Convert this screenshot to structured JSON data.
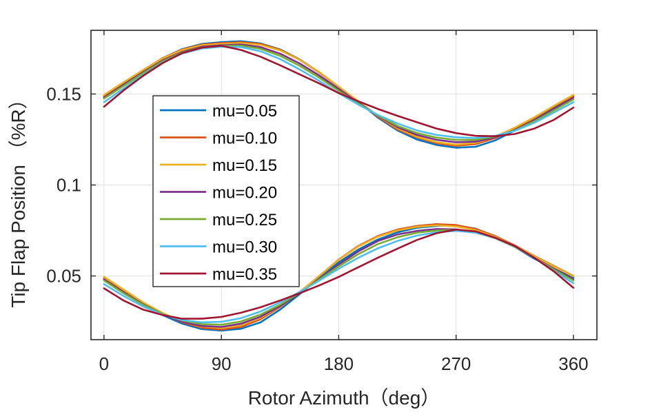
{
  "chart_data": {
    "type": "line",
    "title": "",
    "xlabel": "Rotor Azimuth（deg）",
    "ylabel": "Tip Flap Position （%R）",
    "xlim": [
      -10,
      378
    ],
    "ylim": [
      0.015,
      0.185
    ],
    "xticks": [
      0,
      90,
      180,
      270,
      360
    ],
    "xtick_labels": [
      "0",
      "90",
      "180",
      "270",
      "360"
    ],
    "yticks": [
      0.05,
      0.1,
      0.15
    ],
    "ytick_labels": [
      "0.05",
      "0.1",
      "0.15"
    ],
    "grid": true,
    "legend_position": "center-left",
    "x": [
      0,
      15,
      30,
      45,
      60,
      75,
      90,
      105,
      120,
      135,
      150,
      165,
      180,
      195,
      210,
      225,
      240,
      255,
      270,
      285,
      300,
      315,
      330,
      345,
      360
    ],
    "series": [
      {
        "name": "mu=0.05",
        "color": "#0072BD",
        "group": "upper",
        "values": [
          0.1485,
          0.1558,
          0.163,
          0.1697,
          0.1747,
          0.1775,
          0.1785,
          0.179,
          0.1778,
          0.1745,
          0.169,
          0.162,
          0.154,
          0.1458,
          0.137,
          0.13,
          0.125,
          0.122,
          0.1205,
          0.121,
          0.1245,
          0.13,
          0.136,
          0.1425,
          0.1485
        ]
      },
      {
        "name": "mu=0.10",
        "color": "#D95319",
        "group": "upper",
        "values": [
          0.149,
          0.1563,
          0.1632,
          0.1697,
          0.1745,
          0.1772,
          0.178,
          0.1785,
          0.1775,
          0.1743,
          0.1688,
          0.1618,
          0.154,
          0.1458,
          0.1375,
          0.1305,
          0.126,
          0.123,
          0.1215,
          0.1225,
          0.1258,
          0.131,
          0.1368,
          0.1432,
          0.149
        ]
      },
      {
        "name": "mu=0.15",
        "color": "#EDB120",
        "group": "upper",
        "values": [
          0.1495,
          0.1565,
          0.1632,
          0.1695,
          0.1742,
          0.1768,
          0.1775,
          0.178,
          0.177,
          0.174,
          0.1688,
          0.162,
          0.154,
          0.146,
          0.138,
          0.1312,
          0.1265,
          0.1235,
          0.1222,
          0.1232,
          0.1265,
          0.1315,
          0.1372,
          0.1435,
          0.1495
        ]
      },
      {
        "name": "mu=0.20",
        "color": "#7E2F8E",
        "group": "upper",
        "values": [
          0.148,
          0.155,
          0.162,
          0.1685,
          0.1732,
          0.176,
          0.1768,
          0.1772,
          0.1758,
          0.1722,
          0.1668,
          0.1602,
          0.1528,
          0.1452,
          0.138,
          0.1318,
          0.1275,
          0.1248,
          0.1235,
          0.1238,
          0.1262,
          0.1302,
          0.1355,
          0.1418,
          0.148
        ]
      },
      {
        "name": "mu=0.25",
        "color": "#77AC30",
        "group": "upper",
        "values": [
          0.1475,
          0.1545,
          0.1615,
          0.168,
          0.1728,
          0.1756,
          0.1764,
          0.1766,
          0.1748,
          0.171,
          0.1655,
          0.159,
          0.1518,
          0.1448,
          0.1382,
          0.1325,
          0.1285,
          0.126,
          0.1248,
          0.1248,
          0.1266,
          0.13,
          0.135,
          0.141,
          0.147
        ]
      },
      {
        "name": "mu=0.30",
        "color": "#4DBEEE",
        "group": "upper",
        "values": [
          0.1455,
          0.153,
          0.1605,
          0.1673,
          0.1722,
          0.175,
          0.176,
          0.1758,
          0.1735,
          0.1692,
          0.1635,
          0.1572,
          0.1505,
          0.1442,
          0.1385,
          0.1338,
          0.13,
          0.1275,
          0.1262,
          0.1258,
          0.127,
          0.1298,
          0.1342,
          0.1398,
          0.1455
        ]
      },
      {
        "name": "mu=0.35",
        "color": "#A2142F",
        "group": "upper",
        "values": [
          0.143,
          0.152,
          0.16,
          0.167,
          0.1725,
          0.1755,
          0.1765,
          0.1742,
          0.1705,
          0.1658,
          0.1608,
          0.1558,
          0.1505,
          0.146,
          0.1418,
          0.138,
          0.1345,
          0.131,
          0.1285,
          0.127,
          0.1268,
          0.128,
          0.131,
          0.1358,
          0.1425
        ]
      },
      {
        "name": "mu=0.05",
        "color": "#0072BD",
        "group": "lower",
        "values": [
          0.0485,
          0.0415,
          0.0345,
          0.0285,
          0.0238,
          0.0208,
          0.02,
          0.021,
          0.0245,
          0.0315,
          0.04,
          0.049,
          0.0575,
          0.0645,
          0.07,
          0.074,
          0.0765,
          0.0775,
          0.0778,
          0.076,
          0.0718,
          0.066,
          0.0595,
          0.054,
          0.049
        ]
      },
      {
        "name": "mu=0.10",
        "color": "#D95319",
        "group": "lower",
        "values": [
          0.049,
          0.042,
          0.0352,
          0.0293,
          0.0245,
          0.0215,
          0.0205,
          0.022,
          0.0262,
          0.033,
          0.041,
          0.05,
          0.059,
          0.0665,
          0.072,
          0.0755,
          0.0775,
          0.0785,
          0.078,
          0.0758,
          0.072,
          0.0668,
          0.061,
          0.0555,
          0.05
        ]
      },
      {
        "name": "mu=0.15",
        "color": "#EDB120",
        "group": "lower",
        "values": [
          0.0495,
          0.0425,
          0.0355,
          0.0296,
          0.025,
          0.0222,
          0.0215,
          0.023,
          0.027,
          0.0335,
          0.0412,
          0.05,
          0.0588,
          0.0662,
          0.0716,
          0.075,
          0.077,
          0.0778,
          0.0772,
          0.0752,
          0.0715,
          0.0665,
          0.0608,
          0.0552,
          0.0498
        ]
      },
      {
        "name": "mu=0.20",
        "color": "#7E2F8E",
        "group": "lower",
        "values": [
          0.048,
          0.041,
          0.0345,
          0.029,
          0.0248,
          0.0225,
          0.022,
          0.0238,
          0.0276,
          0.0335,
          0.0405,
          0.0483,
          0.0563,
          0.0635,
          0.0692,
          0.0728,
          0.0748,
          0.0758,
          0.0756,
          0.074,
          0.0708,
          0.066,
          0.06,
          0.054,
          0.0482
        ]
      },
      {
        "name": "mu=0.25",
        "color": "#77AC30",
        "group": "lower",
        "values": [
          0.0475,
          0.0405,
          0.0342,
          0.029,
          0.0255,
          0.0235,
          0.0232,
          0.025,
          0.0288,
          0.0342,
          0.0408,
          0.048,
          0.0553,
          0.062,
          0.0675,
          0.0713,
          0.0738,
          0.075,
          0.0752,
          0.0738,
          0.0708,
          0.066,
          0.06,
          0.0535,
          0.0475
        ]
      },
      {
        "name": "mu=0.30",
        "color": "#4DBEEE",
        "group": "lower",
        "values": [
          0.0455,
          0.039,
          0.0332,
          0.0287,
          0.0258,
          0.0245,
          0.0248,
          0.0268,
          0.0305,
          0.0355,
          0.0412,
          0.0475,
          0.054,
          0.06,
          0.0652,
          0.0692,
          0.0722,
          0.074,
          0.0748,
          0.0738,
          0.071,
          0.0663,
          0.06,
          0.0528,
          0.046
        ]
      },
      {
        "name": "mu=0.35",
        "color": "#A2142F",
        "group": "lower",
        "values": [
          0.0432,
          0.0365,
          0.0315,
          0.0285,
          0.0265,
          0.0265,
          0.0275,
          0.0298,
          0.0328,
          0.0365,
          0.0405,
          0.0448,
          0.0495,
          0.0548,
          0.06,
          0.065,
          0.0698,
          0.0735,
          0.0755,
          0.0745,
          0.071,
          0.0665,
          0.06,
          0.0525,
          0.0435
        ]
      }
    ]
  }
}
